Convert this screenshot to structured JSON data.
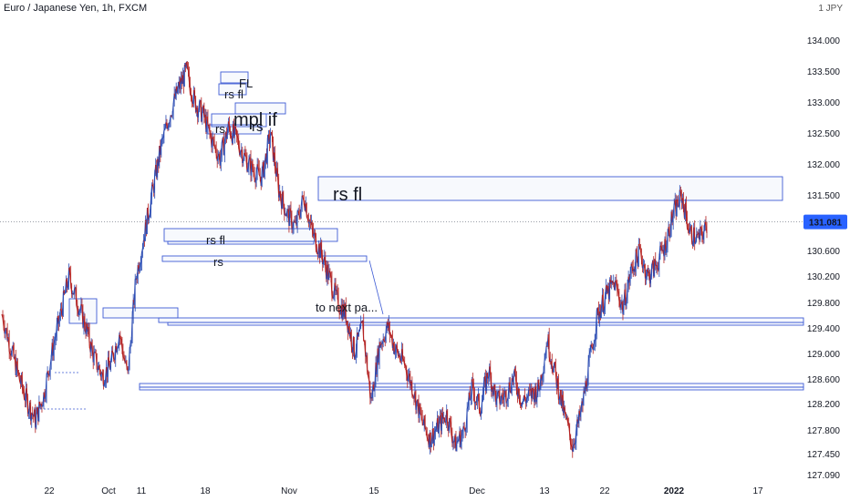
{
  "header": {
    "symbol_title": "Euro / Japanese Yen, 1h, FXCM",
    "currency_unit": "JPY"
  },
  "colors": {
    "up": "#2a4bb3",
    "down": "#b32020",
    "zone_border": "#3d5bd4",
    "price_badge": "#2962ff"
  },
  "chart_data": {
    "type": "line",
    "title": "Euro / Japanese Yen, 1h, FXCM",
    "xlabel": "",
    "ylabel": "",
    "ylim": [
      127.0,
      134.25
    ],
    "y_ticks": [
      "134.000",
      "133.500",
      "133.000",
      "132.500",
      "132.000",
      "131.500",
      "131.081",
      "130.600",
      "130.200",
      "129.800",
      "129.400",
      "129.000",
      "128.600",
      "128.200",
      "127.800",
      "127.450",
      "127.090"
    ],
    "x_ticks": [
      "22",
      "Oct",
      "11",
      "18",
      "Nov",
      "15",
      "Dec",
      "13",
      "22",
      "2022",
      "17"
    ],
    "last_price": "131.081",
    "series": [
      {
        "values": [
          129.6,
          129.1,
          128.6,
          128.2,
          127.9,
          128.3,
          129.0,
          129.6,
          130.2,
          129.8,
          129.4,
          128.9,
          128.6,
          128.8,
          129.3,
          128.6,
          130.2,
          130.9,
          131.6,
          132.3,
          132.8,
          133.2,
          133.5,
          133.0,
          132.8,
          132.4,
          132.1,
          132.6,
          132.4,
          132.1,
          131.9,
          131.8,
          132.5,
          131.6,
          131.2,
          131.0,
          131.5,
          130.9,
          130.6,
          130.2,
          129.8,
          129.6,
          129.0,
          129.4,
          128.2,
          129.1,
          129.4,
          129.0,
          128.8,
          128.4,
          127.9,
          127.6,
          127.8,
          128.0,
          127.5,
          127.7,
          128.4,
          128.1,
          128.7,
          128.2,
          128.3,
          128.6,
          128.2,
          128.3,
          128.4,
          129.2,
          128.6,
          128.0,
          127.5,
          128.0,
          128.8,
          129.6,
          129.9,
          130.1,
          129.7,
          130.3,
          130.6,
          130.2,
          130.4,
          130.7,
          131.2,
          131.5,
          130.9,
          130.8,
          131.0
        ]
      }
    ],
    "annotations": [
      {
        "label": "FL",
        "kind": "text"
      },
      {
        "label": "rs fl",
        "kind": "text"
      },
      {
        "label": "mpl if",
        "kind": "text"
      },
      {
        "label": "rs",
        "kind": "text"
      },
      {
        "label": "rs",
        "kind": "text"
      },
      {
        "label": "rs fl",
        "kind": "text"
      },
      {
        "label": "rs fl",
        "kind": "text"
      },
      {
        "label": "rs",
        "kind": "text"
      },
      {
        "label": "to next pa...",
        "kind": "text"
      }
    ]
  }
}
